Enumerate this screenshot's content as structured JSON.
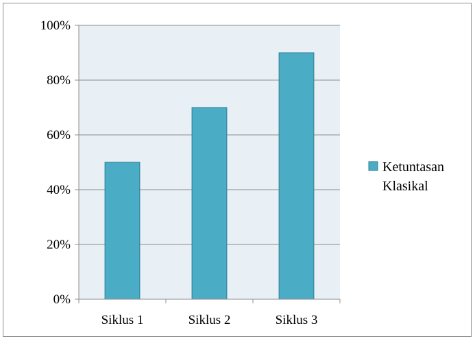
{
  "chart_data": {
    "type": "bar",
    "title": "",
    "xlabel": "",
    "ylabel": "",
    "categories": [
      "Siklus 1",
      "Siklus 2",
      "Siklus 3"
    ],
    "series": [
      {
        "name": "Ketuntasan Klasikal",
        "values": [
          50,
          70,
          90
        ],
        "color": "#4bacc6"
      }
    ],
    "ylim": [
      0,
      100
    ],
    "y_ticks": [
      0,
      20,
      40,
      60,
      80,
      100
    ],
    "y_tick_labels": [
      "0%",
      "20%",
      "40%",
      "60%",
      "80%",
      "100%"
    ],
    "grid": true,
    "legend_position": "right",
    "legend_lines": [
      "Ketuntasan",
      "Klasikal"
    ],
    "plot_background": "#e9f0f5",
    "gridline_color": "#8c8c8c",
    "bar_border_color": "#2c7e95"
  }
}
